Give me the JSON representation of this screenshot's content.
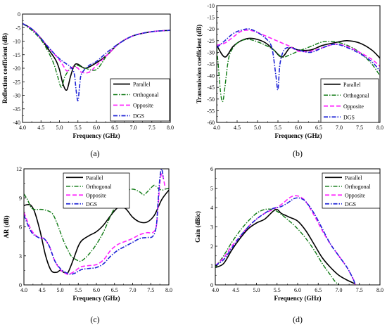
{
  "colors": {
    "Parallel": "#000000",
    "Orthogonal": "#0f7a14",
    "Opposite": "#ff22ff",
    "DGS": "#1f25d6"
  },
  "chart_data": [
    {
      "type": "line",
      "panel_label": "(a)",
      "xlabel": "Frequency (GHz)",
      "ylabel": "Reflection coefficient (dB)",
      "xlim": [
        4.0,
        8.0
      ],
      "ylim": [
        -40,
        0
      ],
      "xticks": [
        "4.0",
        "4.5",
        "5.0",
        "5.5",
        "6.0",
        "6.5",
        "7.0",
        "7.5",
        "8.0"
      ],
      "yticks": [
        "0",
        "-5",
        "-10",
        "-15",
        "-20",
        "-25",
        "-30",
        "-35",
        "-40"
      ],
      "legend_position": "lower-right",
      "series": [
        {
          "name": "Parallel",
          "x": [
            4.0,
            4.25,
            4.5,
            4.7,
            4.9,
            5.0,
            5.1,
            5.2,
            5.3,
            5.4,
            5.5,
            5.7,
            6.0,
            6.3,
            6.6,
            7.0,
            7.5,
            8.0
          ],
          "y": [
            -3.5,
            -5.5,
            -9,
            -13,
            -17,
            -20.5,
            -26,
            -28,
            -23,
            -19,
            -18.5,
            -20,
            -18,
            -15,
            -11,
            -8,
            -6.5,
            -6
          ]
        },
        {
          "name": "Orthogonal",
          "x": [
            4.0,
            4.25,
            4.5,
            4.7,
            4.85,
            4.95,
            5.05,
            5.15,
            5.3,
            5.4,
            5.5,
            5.7,
            6.0,
            6.3,
            6.6,
            7.0,
            7.5,
            8.0
          ],
          "y": [
            -3.5,
            -6,
            -9.5,
            -14,
            -18.5,
            -23,
            -27,
            -23,
            -20,
            -19.5,
            -19,
            -20,
            -20.5,
            -15,
            -11,
            -8,
            -6.5,
            -6
          ]
        },
        {
          "name": "Opposite",
          "x": [
            4.0,
            4.25,
            4.5,
            4.75,
            5.0,
            5.1,
            5.2,
            5.3,
            5.4,
            5.5,
            5.6,
            5.8,
            6.0,
            6.3,
            6.6,
            7.0,
            7.5,
            8.0
          ],
          "y": [
            -3.5,
            -5.5,
            -9,
            -13,
            -17,
            -19,
            -21,
            -20,
            -19.5,
            -20,
            -21.5,
            -21.5,
            -19,
            -15,
            -11,
            -8,
            -6.5,
            -6
          ]
        },
        {
          "name": "DGS",
          "x": [
            4.0,
            4.25,
            4.5,
            4.75,
            5.0,
            5.2,
            5.3,
            5.4,
            5.45,
            5.5,
            5.55,
            5.6,
            5.8,
            6.0,
            6.3,
            6.6,
            7.0,
            7.5,
            8.0
          ],
          "y": [
            -3.5,
            -5.5,
            -9,
            -13,
            -16.5,
            -18.5,
            -19.5,
            -22,
            -28,
            -32,
            -26,
            -22,
            -19,
            -17.5,
            -14,
            -11,
            -8,
            -6.5,
            -6
          ]
        }
      ]
    },
    {
      "type": "line",
      "panel_label": "(b)",
      "xlabel": "Frequency (GHz)",
      "ylabel": "Transmission coefficient (dB)",
      "xlim": [
        4.0,
        8.0
      ],
      "ylim": [
        -60,
        -10
      ],
      "xticks": [
        "4.0",
        "4.5",
        "5.0",
        "5.5",
        "6.0",
        "6.5",
        "7.0",
        "7.5",
        "8.0"
      ],
      "yticks": [
        "-10",
        "-15",
        "-20",
        "-25",
        "-30",
        "-35",
        "-40",
        "-45",
        "-50",
        "-55",
        "-60"
      ],
      "legend_position": "lower-right",
      "series": [
        {
          "name": "Parallel",
          "x": [
            4.0,
            4.2,
            4.4,
            4.6,
            4.8,
            5.0,
            5.2,
            5.4,
            5.6,
            5.8,
            6.0,
            6.3,
            6.6,
            7.0,
            7.2,
            7.5,
            7.8,
            8.0
          ],
          "y": [
            -27,
            -32,
            -27.5,
            -25,
            -24,
            -24.5,
            -26,
            -29,
            -32,
            -28,
            -29,
            -29,
            -27,
            -25.5,
            -25,
            -26,
            -29,
            -32.5
          ]
        },
        {
          "name": "Orthogonal",
          "x": [
            4.0,
            4.05,
            4.1,
            4.15,
            4.2,
            4.3,
            4.45,
            4.6,
            4.8,
            5.0,
            5.2,
            5.4,
            5.6,
            5.8,
            6.0,
            6.3,
            6.6,
            6.9,
            7.2,
            7.5,
            7.8,
            8.0
          ],
          "y": [
            -28,
            -38,
            -48,
            -51,
            -45,
            -32,
            -27,
            -25,
            -24.5,
            -25.5,
            -27,
            -29,
            -32,
            -31,
            -29.5,
            -27.5,
            -25.5,
            -25.5,
            -27,
            -30,
            -35,
            -40
          ]
        },
        {
          "name": "Opposite",
          "x": [
            4.0,
            4.2,
            4.4,
            4.6,
            4.8,
            5.0,
            5.2,
            5.4,
            5.6,
            5.8,
            6.0,
            6.3,
            6.6,
            6.9,
            7.2,
            7.5,
            7.8,
            8.0
          ],
          "y": [
            -27,
            -26,
            -23.5,
            -21,
            -20.5,
            -21.5,
            -23,
            -24.5,
            -26,
            -27.5,
            -29.5,
            -29.5,
            -28,
            -26.5,
            -27.5,
            -30,
            -33,
            -36
          ]
        },
        {
          "name": "DGS",
          "x": [
            4.0,
            4.2,
            4.4,
            4.6,
            4.8,
            5.0,
            5.2,
            5.35,
            5.45,
            5.5,
            5.55,
            5.65,
            5.8,
            6.0,
            6.3,
            6.6,
            6.9,
            7.2,
            7.5,
            7.8,
            8.0
          ],
          "y": [
            -28,
            -25,
            -22,
            -20.5,
            -20,
            -21.5,
            -24,
            -28,
            -40,
            -46,
            -35,
            -29,
            -28,
            -29,
            -30,
            -28,
            -26.5,
            -28,
            -30.5,
            -34,
            -38
          ]
        }
      ]
    },
    {
      "type": "line",
      "panel_label": "(c)",
      "xlabel": "Frequency (GHz)",
      "ylabel": "AR (dB)",
      "xlim": [
        4.0,
        8.0
      ],
      "ylim": [
        0,
        12
      ],
      "xticks": [
        "4.0",
        "4.5",
        "5.0",
        "5.5",
        "6.0",
        "6.5",
        "7.0",
        "7.5",
        "8.0"
      ],
      "yticks": [
        "0",
        "3",
        "6",
        "9",
        "12"
      ],
      "legend_position": "top-right",
      "series": [
        {
          "name": "Parallel",
          "x": [
            4.0,
            4.1,
            4.2,
            4.3,
            4.45,
            4.6,
            4.75,
            4.9,
            5.0,
            5.1,
            5.2,
            5.3,
            5.4,
            5.5,
            5.6,
            5.8,
            6.0,
            6.2,
            6.4,
            6.6,
            6.8,
            7.0,
            7.2,
            7.4,
            7.6,
            7.8,
            8.0
          ],
          "y": [
            8.2,
            8.3,
            8.2,
            7.5,
            5.5,
            3.0,
            1.5,
            1.3,
            1.5,
            1.3,
            1.2,
            2.0,
            3.0,
            4.0,
            4.6,
            5.1,
            5.5,
            6.2,
            7.2,
            8.0,
            7.9,
            7.0,
            6.5,
            6.5,
            7.2,
            8.8,
            9.8
          ]
        },
        {
          "name": "Orthogonal",
          "x": [
            4.0,
            4.1,
            4.2,
            4.3,
            4.5,
            4.7,
            4.8,
            4.9,
            5.0,
            5.1,
            5.2,
            5.3,
            5.4,
            5.5,
            5.6,
            5.8,
            6.0,
            6.2,
            6.4,
            6.6,
            6.8,
            7.0,
            7.2,
            7.3,
            7.4,
            7.5,
            7.6,
            7.7,
            7.8,
            7.9,
            8.0
          ],
          "y": [
            9.4,
            8.8,
            8.0,
            7.8,
            7.8,
            7.6,
            7.3,
            6.5,
            5.5,
            4.5,
            3.7,
            3.0,
            2.7,
            2.5,
            2.5,
            3.2,
            4.2,
            5.5,
            7.2,
            8.6,
            9.6,
            9.9,
            9.6,
            9.3,
            9.6,
            10.0,
            10.3,
            10.0,
            9.8,
            9.9,
            10.0
          ]
        },
        {
          "name": "Opposite",
          "x": [
            4.0,
            4.2,
            4.4,
            4.55,
            4.7,
            4.85,
            5.0,
            5.1,
            5.2,
            5.3,
            5.4,
            5.5,
            5.6,
            5.8,
            6.0,
            6.2,
            6.4,
            6.6,
            6.8,
            7.0,
            7.2,
            7.4,
            7.55,
            7.65,
            7.7,
            7.75,
            7.8,
            7.85,
            7.9
          ],
          "y": [
            7.5,
            5.7,
            4.9,
            4.8,
            4.0,
            2.5,
            1.6,
            1.3,
            1.1,
            1.2,
            1.4,
            1.7,
            1.9,
            2.0,
            2.1,
            2.6,
            3.6,
            4.2,
            4.5,
            4.8,
            5.2,
            5.4,
            5.4,
            6.0,
            8.0,
            10.5,
            11.5,
            11.0,
            10.0
          ]
        },
        {
          "name": "DGS",
          "x": [
            4.0,
            4.2,
            4.4,
            4.55,
            4.7,
            4.85,
            5.0,
            5.1,
            5.2,
            5.3,
            5.4,
            5.5,
            5.6,
            5.8,
            6.0,
            6.2,
            6.4,
            6.6,
            6.8,
            7.0,
            7.2,
            7.4,
            7.55,
            7.65,
            7.7,
            7.75,
            7.8,
            7.85
          ],
          "y": [
            7.2,
            5.5,
            4.9,
            4.8,
            4.0,
            2.5,
            1.7,
            1.4,
            1.2,
            1.1,
            1.2,
            1.4,
            1.6,
            1.7,
            1.8,
            2.2,
            3.0,
            3.6,
            4.0,
            4.4,
            4.8,
            4.9,
            5.0,
            6.0,
            8.5,
            11.0,
            12.0,
            11.0
          ]
        }
      ]
    },
    {
      "type": "line",
      "panel_label": "(d)",
      "xlabel": "Frequency (GHz)",
      "ylabel": "Gain (dBic)",
      "xlim": [
        4.0,
        8.0
      ],
      "ylim": [
        0,
        6
      ],
      "xticks": [
        "4.0",
        "4.5",
        "5.0",
        "5.5",
        "6.0",
        "6.5",
        "7.0",
        "7.5",
        "8.0"
      ],
      "yticks": [
        "0",
        "1",
        "2",
        "3",
        "4",
        "5",
        "6"
      ],
      "legend_position": "top-right",
      "series": [
        {
          "name": "Parallel",
          "x": [
            4.0,
            4.2,
            4.4,
            4.6,
            4.8,
            5.0,
            5.2,
            5.4,
            5.5,
            5.6,
            5.7,
            5.8,
            6.0,
            6.2,
            6.4,
            6.6,
            6.8,
            7.0,
            7.2,
            7.3,
            7.4
          ],
          "y": [
            0.9,
            1.1,
            1.8,
            2.4,
            2.9,
            3.2,
            3.4,
            3.8,
            3.9,
            3.7,
            3.6,
            3.5,
            3.3,
            2.8,
            2.1,
            1.4,
            0.9,
            0.5,
            0.25,
            0.15,
            0.05
          ]
        },
        {
          "name": "Orthogonal",
          "x": [
            4.0,
            4.2,
            4.4,
            4.6,
            4.8,
            5.0,
            5.2,
            5.4,
            5.5,
            5.6,
            5.8,
            6.0,
            6.2,
            6.4,
            6.6,
            6.8,
            6.9,
            7.0
          ],
          "y": [
            0.9,
            1.5,
            2.2,
            2.8,
            3.3,
            3.7,
            3.9,
            3.9,
            3.8,
            3.65,
            3.3,
            2.9,
            2.4,
            1.8,
            1.1,
            0.5,
            0.2,
            0.0
          ]
        },
        {
          "name": "Opposite",
          "x": [
            4.0,
            4.2,
            4.4,
            4.6,
            4.8,
            5.0,
            5.2,
            5.4,
            5.6,
            5.8,
            5.9,
            6.0,
            6.1,
            6.2,
            6.4,
            6.6,
            6.8,
            7.0,
            7.2,
            7.35,
            7.4
          ],
          "y": [
            1.0,
            1.4,
            2.0,
            2.5,
            3.0,
            3.4,
            3.7,
            3.9,
            4.15,
            4.5,
            4.6,
            4.6,
            4.5,
            4.3,
            3.6,
            2.8,
            2.1,
            1.5,
            0.9,
            0.3,
            0.0
          ]
        },
        {
          "name": "DGS",
          "x": [
            4.0,
            4.2,
            4.4,
            4.6,
            4.8,
            5.0,
            5.2,
            5.4,
            5.6,
            5.8,
            5.9,
            6.0,
            6.1,
            6.2,
            6.4,
            6.6,
            6.8,
            7.0,
            7.2,
            7.35,
            7.4
          ],
          "y": [
            1.0,
            1.3,
            1.9,
            2.5,
            3.0,
            3.4,
            3.7,
            3.95,
            4.05,
            4.3,
            4.45,
            4.5,
            4.45,
            4.3,
            3.7,
            2.9,
            2.1,
            1.5,
            0.9,
            0.3,
            0.0
          ]
        }
      ]
    }
  ]
}
